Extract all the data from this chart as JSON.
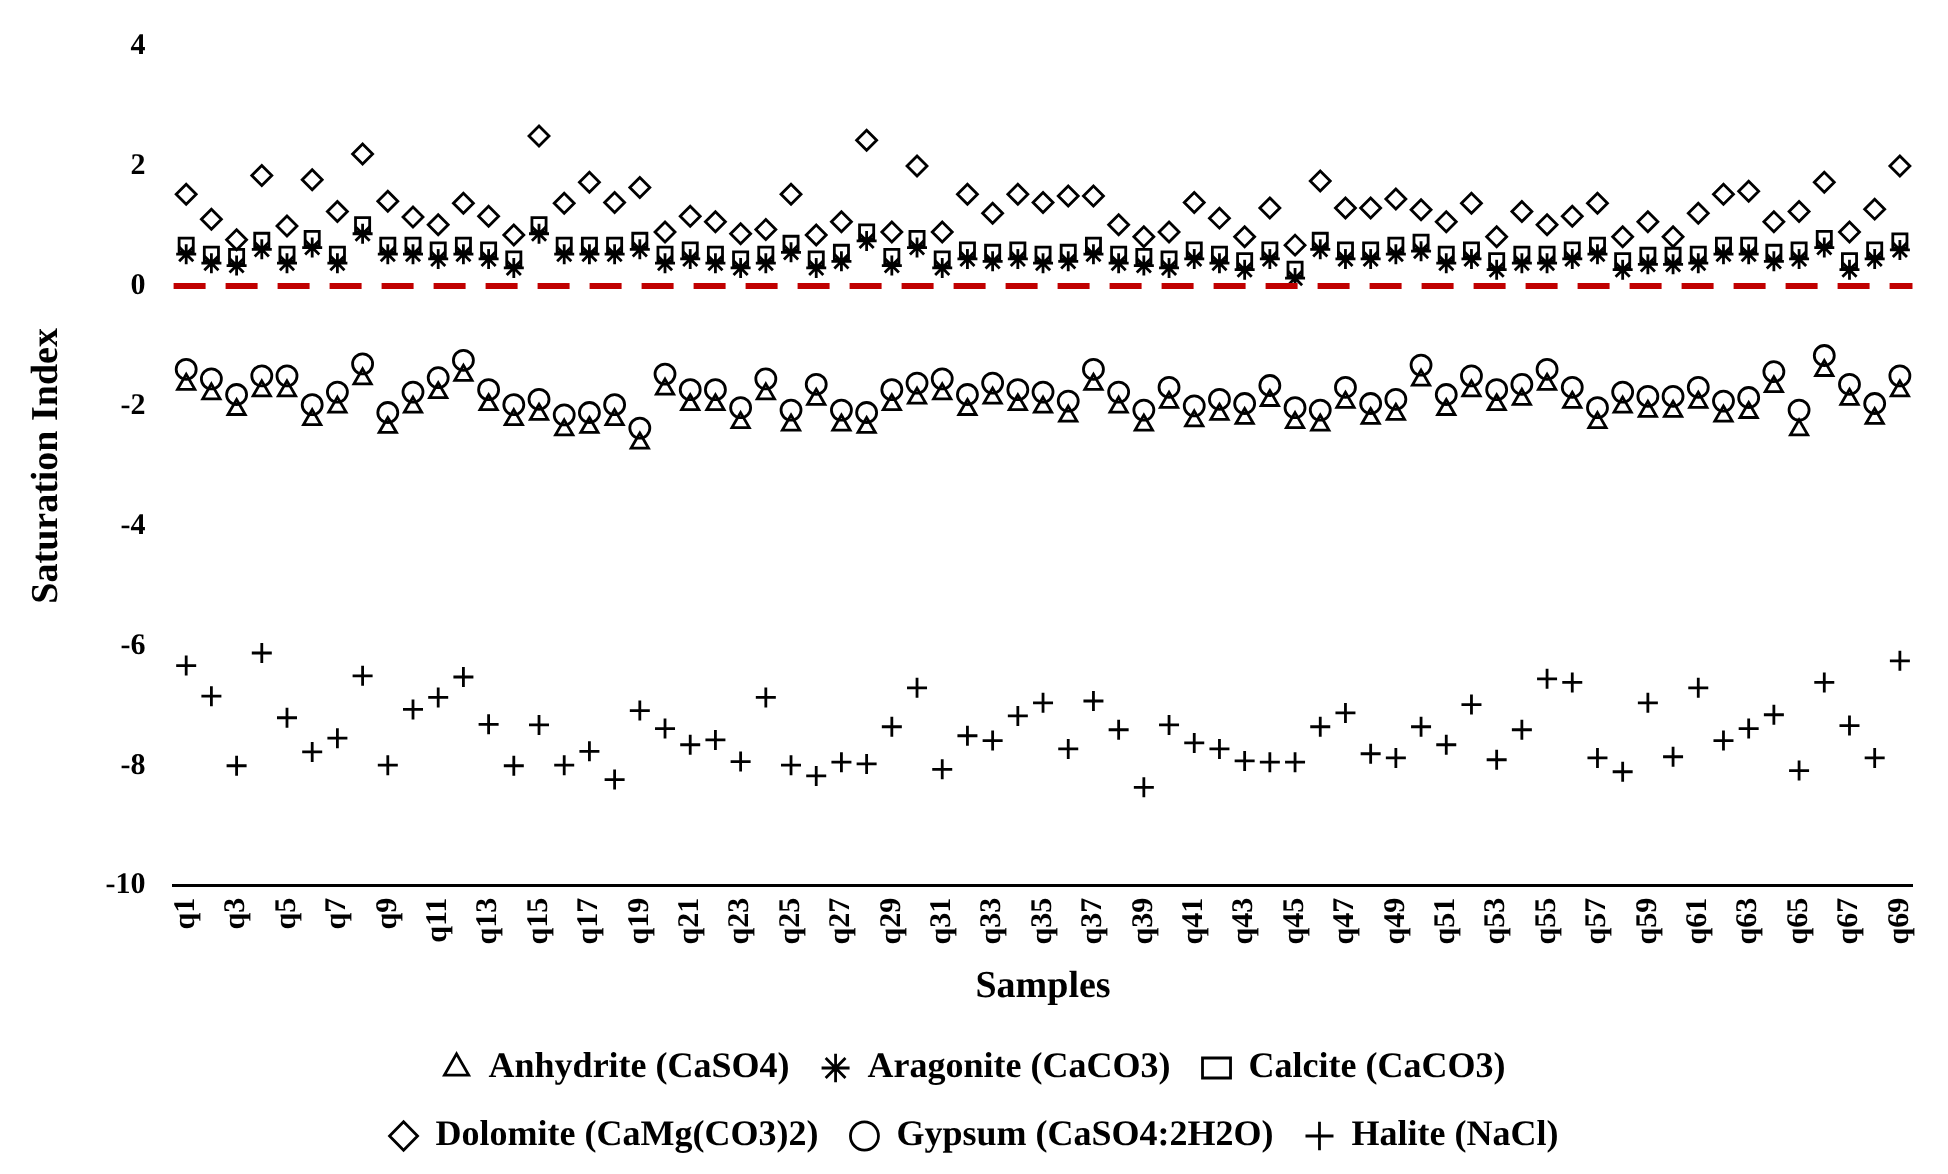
{
  "chart_data": {
    "type": "scatter",
    "xlabel": "Samples",
    "ylabel": "Saturation Index",
    "categories": [
      "q1",
      null,
      "q3",
      null,
      "q5",
      null,
      "q7",
      null,
      "q9",
      null,
      "q11",
      null,
      "q13",
      null,
      "q15",
      null,
      "q17",
      null,
      "q19",
      null,
      "q21",
      null,
      "q23",
      null,
      "q25",
      null,
      "q27",
      null,
      "q29",
      null,
      "q31",
      null,
      "q33",
      null,
      "q35",
      null,
      "q37",
      null,
      "q39",
      null,
      "q41",
      null,
      "q43",
      null,
      "q45",
      null,
      "q47",
      null,
      "q49",
      null,
      "q51",
      null,
      "q53",
      null,
      "q55",
      null,
      "q57",
      null,
      "q59",
      null,
      "q61",
      null,
      "q63",
      null,
      "q65",
      null,
      "q67",
      null,
      "q69"
    ],
    "ylim": [
      -10,
      4
    ],
    "yticks": [
      -10,
      -8,
      -6,
      -4,
      -2,
      0,
      2,
      4
    ],
    "grid": false,
    "legend": "bottom",
    "ref_lines": [
      {
        "axis": "y",
        "value": 0,
        "color": "#c00000",
        "line_style": "dashed"
      }
    ],
    "series": [
      {
        "name": "Anhydrite (CaSO4)",
        "color": "#000000",
        "marker": "triangle",
        "values": [
          -1.64,
          -1.8,
          -2.06,
          -1.75,
          -1.75,
          -2.23,
          -2.02,
          -1.55,
          -2.36,
          -2.02,
          -1.78,
          -1.49,
          -1.98,
          -2.23,
          -2.14,
          -2.4,
          -2.36,
          -2.23,
          -2.62,
          -1.72,
          -1.98,
          -1.98,
          -2.28,
          -1.8,
          -2.32,
          -1.89,
          -2.32,
          -2.36,
          -1.98,
          -1.87,
          -1.8,
          -2.06,
          -1.87,
          -1.98,
          -2.02,
          -2.17,
          -1.64,
          -2.02,
          -2.32,
          -1.94,
          -2.25,
          -2.14,
          -2.21,
          -1.91,
          -2.28,
          -2.32,
          -1.94,
          -2.21,
          -2.14,
          -1.57,
          -2.06,
          -1.75,
          -1.98,
          -1.89,
          -1.64,
          -1.94,
          -2.28,
          -2.02,
          -2.09,
          -2.09,
          -1.94,
          -2.17,
          -2.11,
          -1.68,
          -2.4,
          -1.41,
          -1.89,
          -2.21,
          -1.75
        ]
      },
      {
        "name": "Aragonite (CaCO3)",
        "color": "#000000",
        "values": [
          0.53,
          0.38,
          0.34,
          0.61,
          0.38,
          0.64,
          0.38,
          0.87,
          0.53,
          0.53,
          0.45,
          0.53,
          0.45,
          0.3,
          0.87,
          0.53,
          0.53,
          0.53,
          0.61,
          0.38,
          0.45,
          0.38,
          0.3,
          0.38,
          0.56,
          0.3,
          0.41,
          0.75,
          0.34,
          0.64,
          0.3,
          0.45,
          0.41,
          0.45,
          0.38,
          0.41,
          0.53,
          0.38,
          0.34,
          0.3,
          0.45,
          0.38,
          0.27,
          0.45,
          0.13,
          0.61,
          0.45,
          0.45,
          0.53,
          0.58,
          0.38,
          0.45,
          0.27,
          0.38,
          0.38,
          0.45,
          0.53,
          0.27,
          0.36,
          0.36,
          0.38,
          0.53,
          0.53,
          0.41,
          0.45,
          0.64,
          0.27,
          0.45,
          0.6
        ]
      },
      {
        "name": "Calcite (CaCO3)",
        "color": "#000000",
        "marker": "square",
        "values": [
          0.68,
          0.53,
          0.49,
          0.76,
          0.53,
          0.79,
          0.53,
          1.02,
          0.68,
          0.68,
          0.6,
          0.68,
          0.6,
          0.45,
          1.02,
          0.68,
          0.68,
          0.68,
          0.76,
          0.53,
          0.6,
          0.53,
          0.45,
          0.53,
          0.71,
          0.45,
          0.56,
          0.9,
          0.49,
          0.79,
          0.45,
          0.6,
          0.56,
          0.6,
          0.53,
          0.56,
          0.68,
          0.53,
          0.49,
          0.45,
          0.6,
          0.53,
          0.42,
          0.6,
          0.28,
          0.76,
          0.6,
          0.6,
          0.68,
          0.73,
          0.53,
          0.6,
          0.42,
          0.53,
          0.53,
          0.6,
          0.68,
          0.42,
          0.51,
          0.51,
          0.53,
          0.68,
          0.68,
          0.56,
          0.6,
          0.79,
          0.42,
          0.6,
          0.75
        ]
      },
      {
        "name": "Dolomite (CaMg(CO3)2)",
        "color": "#000000",
        "marker": "diamond",
        "values": [
          1.53,
          1.11,
          0.77,
          1.84,
          1.0,
          1.77,
          1.24,
          2.2,
          1.41,
          1.15,
          1.02,
          1.38,
          1.16,
          0.85,
          2.5,
          1.38,
          1.73,
          1.39,
          1.64,
          0.9,
          1.16,
          1.07,
          0.87,
          0.94,
          1.53,
          0.85,
          1.07,
          2.43,
          0.9,
          2.0,
          0.9,
          1.53,
          1.21,
          1.53,
          1.39,
          1.5,
          1.5,
          1.02,
          0.82,
          0.9,
          1.39,
          1.13,
          0.82,
          1.3,
          0.68,
          1.75,
          1.3,
          1.3,
          1.45,
          1.27,
          1.07,
          1.38,
          0.82,
          1.24,
          1.02,
          1.16,
          1.38,
          0.82,
          1.07,
          0.82,
          1.21,
          1.53,
          1.58,
          1.07,
          1.24,
          1.73,
          0.9,
          1.28,
          2.0
        ]
      },
      {
        "name": "Gypsum (CaSO4:2H2O)",
        "color": "#000000",
        "marker": "circle",
        "values": [
          -1.39,
          -1.55,
          -1.81,
          -1.5,
          -1.5,
          -1.98,
          -1.77,
          -1.3,
          -2.11,
          -1.77,
          -1.53,
          -1.24,
          -1.73,
          -1.98,
          -1.89,
          -2.15,
          -2.11,
          -1.98,
          -2.37,
          -1.47,
          -1.73,
          -1.73,
          -2.03,
          -1.55,
          -2.07,
          -1.64,
          -2.07,
          -2.11,
          -1.73,
          -1.62,
          -1.55,
          -1.81,
          -1.62,
          -1.73,
          -1.77,
          -1.92,
          -1.39,
          -1.77,
          -2.07,
          -1.69,
          -2.0,
          -1.89,
          -1.96,
          -1.66,
          -2.03,
          -2.07,
          -1.69,
          -1.96,
          -1.89,
          -1.32,
          -1.81,
          -1.5,
          -1.73,
          -1.64,
          -1.39,
          -1.69,
          -2.03,
          -1.77,
          -1.84,
          -1.84,
          -1.69,
          -1.92,
          -1.86,
          -1.43,
          -2.07,
          -1.16,
          -1.64,
          -1.96,
          -1.5
        ]
      },
      {
        "name": "Halite (NaCl)",
        "color": "#000000",
        "marker": "cross",
        "values": [
          -6.33,
          -6.84,
          -8.0,
          -6.12,
          -7.2,
          -7.77,
          -7.54,
          -6.5,
          -7.99,
          -7.06,
          -6.86,
          -6.52,
          -7.31,
          -8.0,
          -7.32,
          -7.99,
          -7.76,
          -8.23,
          -7.08,
          -7.38,
          -7.65,
          -7.57,
          -7.93,
          -6.86,
          -7.99,
          -8.17,
          -7.94,
          -7.97,
          -7.35,
          -6.7,
          -8.06,
          -7.5,
          -7.58,
          -7.17,
          -6.95,
          -7.72,
          -6.92,
          -7.4,
          -8.36,
          -7.32,
          -7.62,
          -7.72,
          -7.92,
          -7.94,
          -7.94,
          -7.35,
          -7.12,
          -7.8,
          -7.87,
          -7.35,
          -7.65,
          -6.98,
          -7.9,
          -7.4,
          -6.55,
          -6.61,
          -7.87,
          -8.1,
          -6.95,
          -7.85,
          -6.7,
          -7.58,
          -7.38,
          -7.15,
          -8.08,
          -6.61,
          -7.33,
          -7.87,
          -6.25
        ]
      }
    ]
  }
}
